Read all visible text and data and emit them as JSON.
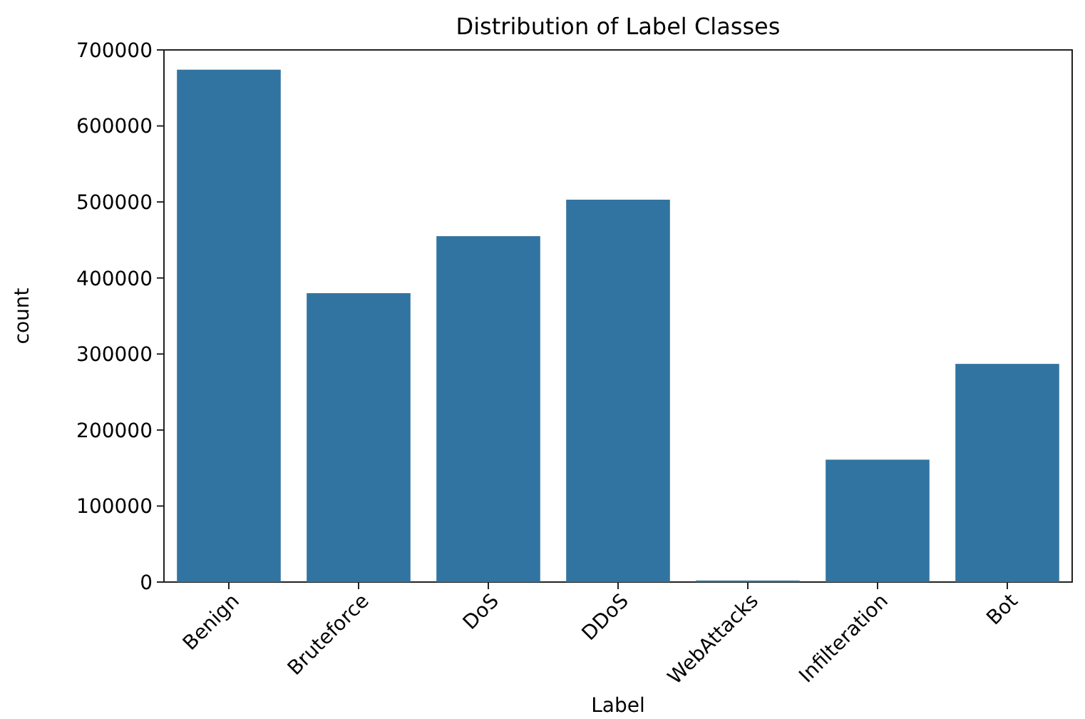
{
  "chart_data": {
    "type": "bar",
    "title": "Distribution of Label Classes",
    "xlabel": "Label",
    "ylabel": "count",
    "categories": [
      "Benign",
      "Bruteforce",
      "DoS",
      "DDoS",
      "WebAttacks",
      "Infilteration",
      "Bot"
    ],
    "values": [
      674000,
      380000,
      455000,
      503000,
      2000,
      161000,
      287000
    ],
    "color": "#3274a1",
    "ylim": [
      0,
      700000
    ],
    "yticks": [
      0,
      100000,
      200000,
      300000,
      400000,
      500000,
      600000,
      700000
    ],
    "grid": false
  }
}
